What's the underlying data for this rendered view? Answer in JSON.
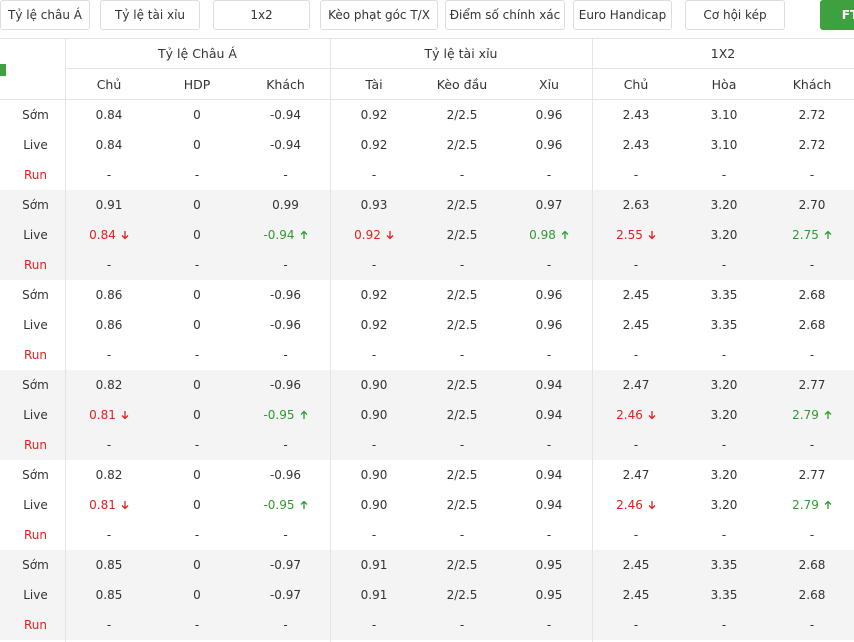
{
  "tabs": [
    "Tỷ lệ châu Á",
    "Tỷ lệ tài xỉu",
    "1x2",
    "Kèo phạt góc T/X",
    "Điểm số chính xác",
    "Euro Handicap",
    "Cơ hội kép",
    "FT"
  ],
  "table": {
    "group_headers": [
      "Tỷ lệ Châu Á",
      "Tỷ lệ tài xỉu",
      "1X2"
    ],
    "sub_headers": [
      "Chủ",
      "HDP",
      "Khách",
      "Tài",
      "Kèo đầu",
      "Xỉu",
      "Chủ",
      "Hòa",
      "Khách"
    ],
    "groups": [
      {
        "rows": [
          {
            "label": "Sớm",
            "cells": [
              "0.84",
              "0",
              "-0.94",
              "0.92",
              "2/2.5",
              "0.96",
              "2.43",
              "3.10",
              "2.72"
            ]
          },
          {
            "label": "Live",
            "cells": [
              "0.84",
              "0",
              "-0.94",
              "0.92",
              "2/2.5",
              "0.96",
              "2.43",
              "3.10",
              "2.72"
            ]
          },
          {
            "label": "Run",
            "cells": [
              "-",
              "-",
              "-",
              "-",
              "-",
              "-",
              "-",
              "-",
              "-"
            ]
          }
        ]
      },
      {
        "rows": [
          {
            "label": "Sớm",
            "cells": [
              "0.91",
              "0",
              "0.99",
              "0.93",
              "2/2.5",
              "0.97",
              "2.63",
              "3.20",
              "2.70"
            ]
          },
          {
            "label": "Live",
            "cells": [
              "0.84",
              "0",
              "-0.94",
              "0.92",
              "2/2.5",
              "0.98",
              "2.55",
              "3.20",
              "2.75"
            ],
            "trends": {
              "0": "down",
              "2": "up",
              "3": "down",
              "5": "up",
              "6": "down",
              "8": "up"
            }
          },
          {
            "label": "Run",
            "cells": [
              "-",
              "-",
              "-",
              "-",
              "-",
              "-",
              "-",
              "-",
              "-"
            ]
          }
        ]
      },
      {
        "rows": [
          {
            "label": "Sớm",
            "cells": [
              "0.86",
              "0",
              "-0.96",
              "0.92",
              "2/2.5",
              "0.96",
              "2.45",
              "3.35",
              "2.68"
            ]
          },
          {
            "label": "Live",
            "cells": [
              "0.86",
              "0",
              "-0.96",
              "0.92",
              "2/2.5",
              "0.96",
              "2.45",
              "3.35",
              "2.68"
            ]
          },
          {
            "label": "Run",
            "cells": [
              "-",
              "-",
              "-",
              "-",
              "-",
              "-",
              "-",
              "-",
              "-"
            ]
          }
        ]
      },
      {
        "rows": [
          {
            "label": "Sớm",
            "cells": [
              "0.82",
              "0",
              "-0.96",
              "0.90",
              "2/2.5",
              "0.94",
              "2.47",
              "3.20",
              "2.77"
            ]
          },
          {
            "label": "Live",
            "cells": [
              "0.81",
              "0",
              "-0.95",
              "0.90",
              "2/2.5",
              "0.94",
              "2.46",
              "3.20",
              "2.79"
            ],
            "trends": {
              "0": "down",
              "2": "up",
              "6": "down",
              "8": "up"
            }
          },
          {
            "label": "Run",
            "cells": [
              "-",
              "-",
              "-",
              "-",
              "-",
              "-",
              "-",
              "-",
              "-"
            ]
          }
        ]
      },
      {
        "rows": [
          {
            "label": "Sớm",
            "cells": [
              "0.82",
              "0",
              "-0.96",
              "0.90",
              "2/2.5",
              "0.94",
              "2.47",
              "3.20",
              "2.77"
            ]
          },
          {
            "label": "Live",
            "cells": [
              "0.81",
              "0",
              "-0.95",
              "0.90",
              "2/2.5",
              "0.94",
              "2.46",
              "3.20",
              "2.79"
            ],
            "trends": {
              "0": "down",
              "2": "up",
              "6": "down",
              "8": "up"
            }
          },
          {
            "label": "Run",
            "cells": [
              "-",
              "-",
              "-",
              "-",
              "-",
              "-",
              "-",
              "-",
              "-"
            ]
          }
        ]
      },
      {
        "rows": [
          {
            "label": "Sớm",
            "cells": [
              "0.85",
              "0",
              "-0.97",
              "0.91",
              "2/2.5",
              "0.95",
              "2.45",
              "3.35",
              "2.68"
            ]
          },
          {
            "label": "Live",
            "cells": [
              "0.85",
              "0",
              "-0.97",
              "0.91",
              "2/2.5",
              "0.95",
              "2.45",
              "3.35",
              "2.68"
            ]
          },
          {
            "label": "Run",
            "cells": [
              "-",
              "-",
              "-",
              "-",
              "-",
              "-",
              "-",
              "-",
              "-"
            ]
          }
        ]
      }
    ]
  }
}
